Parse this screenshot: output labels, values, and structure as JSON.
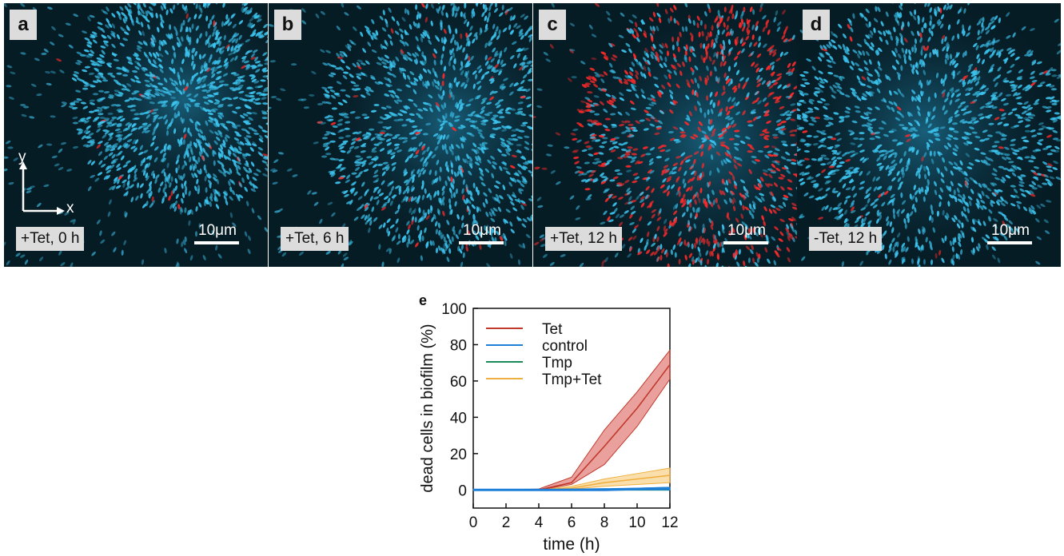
{
  "panels": [
    {
      "letter": "a",
      "condition": "+Tet, 0 h",
      "scale": "10μm",
      "red_level": 0.02
    },
    {
      "letter": "b",
      "condition": "+Tet, 6 h",
      "scale": "10μm",
      "red_level": 0.05
    },
    {
      "letter": "c",
      "condition": "+Tet, 12 h",
      "scale": "10μm",
      "red_level": 0.6
    },
    {
      "letter": "d",
      "condition": "-Tet, 12 h",
      "scale": "10μm",
      "red_level": 0.04
    }
  ],
  "axes_indicator": {
    "x": "x",
    "y": "y"
  },
  "chart_panel_letter": "e",
  "colors": {
    "cell": "#3cc4ef",
    "dead": "#ff2a2a",
    "background": "#061c25"
  },
  "chart_data": {
    "type": "line",
    "xlabel": "time (h)",
    "ylabel": "dead cells in biofilm (%)",
    "xlim": [
      0,
      12
    ],
    "ylim": [
      -10,
      100
    ],
    "xticks": [
      0,
      2,
      4,
      6,
      8,
      10,
      12
    ],
    "yticks": [
      0,
      20,
      40,
      60,
      80,
      100
    ],
    "legend_position": "top-left",
    "x": [
      0,
      2,
      4,
      6,
      8,
      10,
      12
    ],
    "series": [
      {
        "name": "Tet",
        "color": "#c0392b",
        "fill": "#d9534f",
        "values": [
          0,
          0,
          0,
          4,
          24,
          45,
          69
        ],
        "lower": [
          0,
          0,
          0,
          3,
          14,
          35,
          61
        ],
        "upper": [
          0,
          0,
          0.5,
          7,
          33,
          54,
          77
        ]
      },
      {
        "name": "control",
        "color": "#1e7fd8",
        "fill": "#1e7fd8",
        "values": [
          0,
          0,
          0,
          0,
          0,
          0.5,
          1
        ],
        "lower": [
          0,
          0,
          0,
          0,
          0,
          0,
          0
        ],
        "upper": [
          0.3,
          0.3,
          0.3,
          0.5,
          0.7,
          1,
          1.5
        ]
      },
      {
        "name": "Tmp",
        "color": "#1a8a5a",
        "fill": "#1a8a5a",
        "values": [
          0,
          0,
          0,
          0,
          0,
          0,
          0
        ],
        "lower": [
          0,
          0,
          0,
          0,
          0,
          0,
          0
        ],
        "upper": [
          0.2,
          0.2,
          0.2,
          0.2,
          0.2,
          0.2,
          0.2
        ]
      },
      {
        "name": "Tmp+Tet",
        "color": "#f0b040",
        "fill": "#f5c46a",
        "values": [
          0,
          0,
          0,
          1,
          4,
          6,
          8
        ],
        "lower": [
          0,
          0,
          0,
          0.5,
          2,
          3,
          4
        ],
        "upper": [
          0,
          0,
          0,
          2,
          6,
          9,
          12
        ]
      }
    ]
  }
}
